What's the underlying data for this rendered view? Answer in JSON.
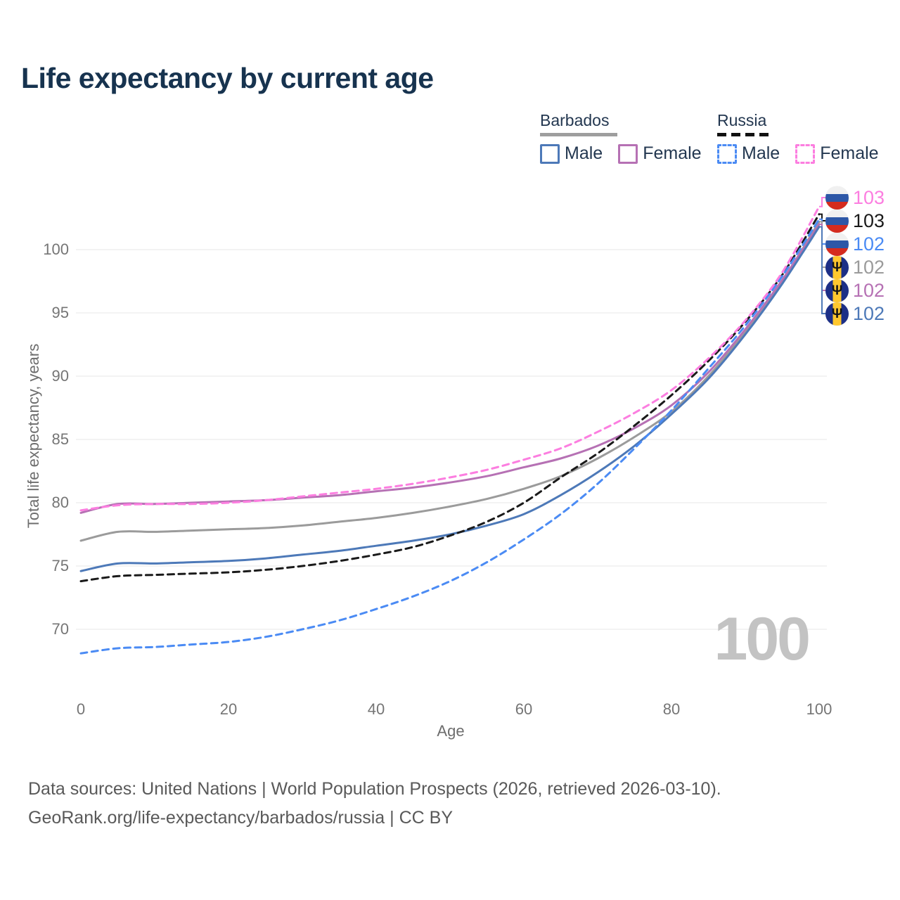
{
  "title": "Life expectancy by current age",
  "legend": {
    "groups": [
      {
        "country": "Barbados",
        "line_style": "solid",
        "line_color": "#9e9e9e",
        "items": [
          {
            "label": "Male",
            "color": "#4d79b8",
            "dashed": false
          },
          {
            "label": "Female",
            "color": "#b671b4",
            "dashed": false
          }
        ]
      },
      {
        "country": "Russia",
        "line_style": "dashed",
        "line_color": "#111111",
        "items": [
          {
            "label": "Male",
            "color": "#4b8bf4",
            "dashed": true
          },
          {
            "label": "Female",
            "color": "#fc7ee0",
            "dashed": true
          }
        ]
      }
    ]
  },
  "chart_data": {
    "type": "line",
    "title": "Life expectancy by current age",
    "xlabel": "Age",
    "ylabel": "Total life expectancy, years",
    "x_ticks": [
      0,
      20,
      40,
      60,
      80,
      100
    ],
    "y_ticks": [
      70,
      75,
      80,
      85,
      90,
      95,
      100
    ],
    "xlim": [
      0,
      100
    ],
    "ylim": [
      66.5,
      104.5
    ],
    "grid": "horizontal",
    "legend_position": "top-right",
    "x": [
      0,
      5,
      10,
      15,
      20,
      25,
      30,
      35,
      40,
      45,
      50,
      55,
      60,
      65,
      70,
      75,
      80,
      85,
      90,
      95,
      100
    ],
    "series": [
      {
        "name": "Barbados Total",
        "country": "Barbados",
        "sex": "Total",
        "color": "#9b9b9b",
        "dashed": false,
        "values": [
          77.0,
          77.7,
          77.7,
          77.8,
          77.9,
          78.0,
          78.2,
          78.5,
          78.8,
          79.2,
          79.7,
          80.3,
          81.1,
          82.1,
          83.5,
          85.2,
          87.2,
          90.0,
          93.5,
          97.5,
          102.2
        ],
        "end_label": 102
      },
      {
        "name": "Barbados Female",
        "country": "Barbados",
        "sex": "Female",
        "color": "#b671b4",
        "dashed": false,
        "values": [
          79.2,
          79.9,
          79.9,
          80.0,
          80.1,
          80.2,
          80.4,
          80.6,
          80.9,
          81.2,
          81.6,
          82.1,
          82.8,
          83.5,
          84.5,
          85.9,
          87.7,
          90.3,
          93.7,
          97.6,
          102.0
        ],
        "end_label": 102
      },
      {
        "name": "Barbados Male",
        "country": "Barbados",
        "sex": "Male",
        "color": "#4d79b8",
        "dashed": false,
        "values": [
          74.6,
          75.2,
          75.2,
          75.3,
          75.4,
          75.6,
          75.9,
          76.2,
          76.6,
          77.0,
          77.5,
          78.2,
          79.1,
          80.6,
          82.4,
          84.5,
          87.0,
          89.8,
          93.3,
          97.3,
          101.8
        ],
        "end_label": 102
      },
      {
        "name": "Russia Total",
        "country": "Russia",
        "sex": "Total",
        "color": "#1a1a1a",
        "dashed": true,
        "values": [
          73.8,
          74.2,
          74.3,
          74.4,
          74.5,
          74.7,
          75.0,
          75.4,
          75.9,
          76.5,
          77.4,
          78.5,
          80.0,
          82.0,
          83.9,
          86.1,
          88.5,
          91.2,
          94.3,
          98.0,
          102.8
        ],
        "end_label": 103
      },
      {
        "name": "Russia Male",
        "country": "Russia",
        "sex": "Male",
        "color": "#4b8bf4",
        "dashed": true,
        "values": [
          68.1,
          68.5,
          68.6,
          68.8,
          69.0,
          69.4,
          70.0,
          70.7,
          71.6,
          72.6,
          73.8,
          75.3,
          77.1,
          79.1,
          81.5,
          84.3,
          87.3,
          90.6,
          94.0,
          97.9,
          102.4
        ],
        "end_label": 102
      },
      {
        "name": "Russia Female",
        "country": "Russia",
        "sex": "Female",
        "color": "#fc7ee0",
        "dashed": true,
        "values": [
          79.4,
          79.8,
          79.9,
          79.9,
          80.0,
          80.2,
          80.5,
          80.8,
          81.1,
          81.5,
          82.0,
          82.6,
          83.4,
          84.3,
          85.6,
          87.1,
          88.9,
          91.4,
          94.4,
          98.2,
          103.4
        ],
        "end_label": 103
      }
    ]
  },
  "end_labels": [
    {
      "flag": "russia",
      "value": "103",
      "color": "#fc7ee0"
    },
    {
      "flag": "russia",
      "value": "103",
      "color": "#1a1a1a"
    },
    {
      "flag": "russia",
      "value": "102",
      "color": "#4b8bf4"
    },
    {
      "flag": "barbados",
      "value": "102",
      "color": "#9b9b9b"
    },
    {
      "flag": "barbados",
      "value": "102",
      "color": "#b671b4"
    },
    {
      "flag": "barbados",
      "value": "102",
      "color": "#4d79b8"
    }
  ],
  "watermark": "100",
  "footer": {
    "line1": "Data sources: United Nations | World Population Prospects (2026, retrieved 2026-03-10).",
    "line2": "GeoRank.org/life-expectancy/barbados/russia | CC BY"
  }
}
